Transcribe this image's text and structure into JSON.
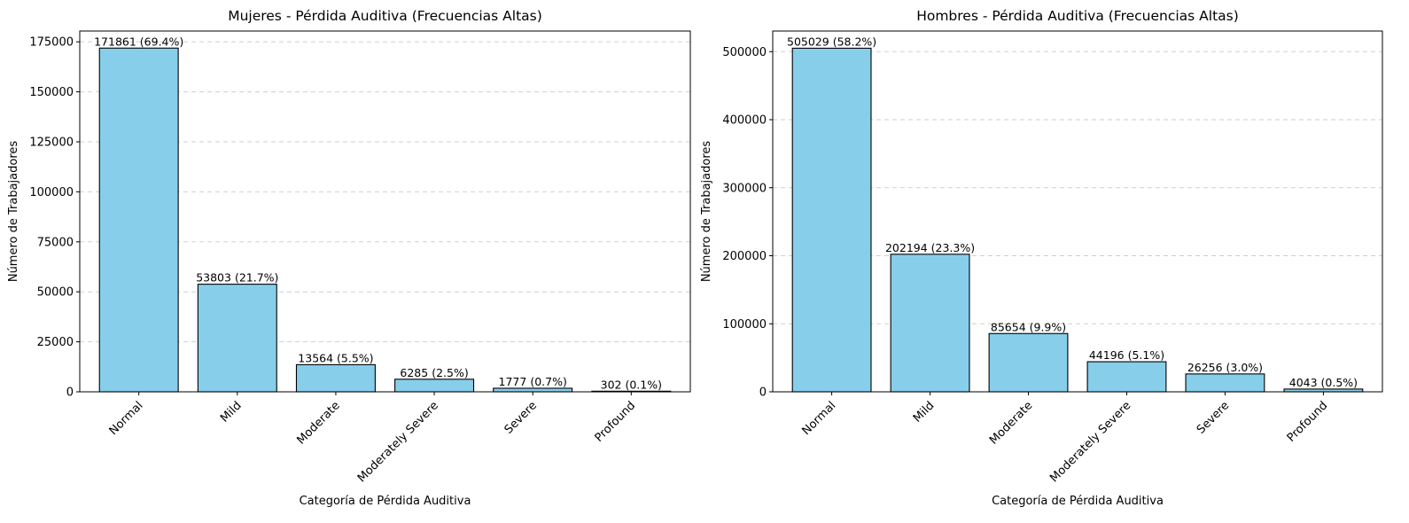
{
  "chart_data": [
    {
      "type": "bar",
      "title": "Mujeres - Pérdida Auditiva (Frecuencias Altas)",
      "xlabel": "Categoría de Pérdida Auditiva",
      "ylabel": "Número de Trabajadores",
      "categories": [
        "Normal",
        "Mild",
        "Moderate",
        "Moderately Severe",
        "Severe",
        "Profound"
      ],
      "values": [
        171861,
        53803,
        13564,
        6285,
        1777,
        302
      ],
      "data_labels": [
        "171861 (69.4%)",
        "53803 (21.7%)",
        "13564 (5.5%)",
        "6285 (2.5%)",
        "1777 (0.7%)",
        "302 (0.1%)"
      ],
      "yticks": [
        0,
        25000,
        50000,
        75000,
        100000,
        125000,
        150000,
        175000
      ],
      "ylim": [
        0,
        180400
      ],
      "grid": "y-dashed",
      "bar_color": "#87CEEB",
      "edge_color": "#000000"
    },
    {
      "type": "bar",
      "title": "Hombres - Pérdida Auditiva (Frecuencias Altas)",
      "xlabel": "Categoría de Pérdida Auditiva",
      "ylabel": "Número de Trabajadores",
      "categories": [
        "Normal",
        "Mild",
        "Moderate",
        "Moderately Severe",
        "Severe",
        "Profound"
      ],
      "values": [
        505029,
        202194,
        85654,
        44196,
        26256,
        4043
      ],
      "data_labels": [
        "505029 (58.2%)",
        "202194 (23.3%)",
        "85654 (9.9%)",
        "44196 (5.1%)",
        "26256 (3.0%)",
        "4043 (0.5%)"
      ],
      "yticks": [
        0,
        100000,
        200000,
        300000,
        400000,
        500000
      ],
      "ylim": [
        0,
        530300
      ],
      "grid": "y-dashed",
      "bar_color": "#87CEEB",
      "edge_color": "#000000"
    }
  ]
}
